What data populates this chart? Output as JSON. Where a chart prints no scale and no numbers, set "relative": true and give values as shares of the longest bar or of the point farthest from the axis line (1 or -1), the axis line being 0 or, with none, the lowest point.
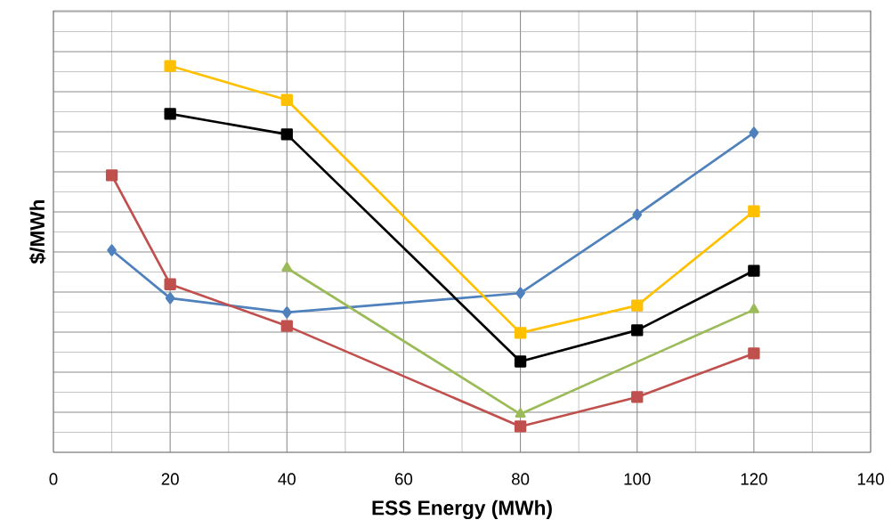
{
  "chart_data": {
    "type": "line",
    "xlabel": "ESS Energy (MWh)",
    "ylabel": "$/MWh",
    "relative": true,
    "xlim": [
      0,
      140
    ],
    "xticks": [
      0,
      20,
      40,
      60,
      80,
      100,
      120,
      140
    ],
    "grid": true,
    "series": [
      {
        "color": "#4f81bd",
        "marker": "diamond",
        "x": [
          10,
          20,
          40,
          80,
          100,
          120
        ],
        "values": [
          0.523,
          0.399,
          0.362,
          0.412,
          0.615,
          0.827
        ]
      },
      {
        "color": "#c0504d",
        "marker": "square",
        "x": [
          10,
          20,
          40,
          80,
          100,
          120
        ],
        "values": [
          0.717,
          0.435,
          0.327,
          0.067,
          0.143,
          0.256
        ]
      },
      {
        "color": "#9bbb59",
        "marker": "triangle",
        "x": [
          40,
          80,
          120
        ],
        "values": [
          0.477,
          0.099,
          0.369
        ]
      },
      {
        "color": "#ffc000",
        "marker": "square",
        "x": [
          20,
          40,
          80,
          100,
          120
        ],
        "values": [
          1,
          0.912,
          0.309,
          0.38,
          0.624
        ]
      },
      {
        "color": "#000000",
        "marker": "square",
        "x": [
          20,
          40,
          80,
          100,
          120
        ],
        "values": [
          0.876,
          0.823,
          0.235,
          0.316,
          0.47
        ]
      }
    ]
  }
}
